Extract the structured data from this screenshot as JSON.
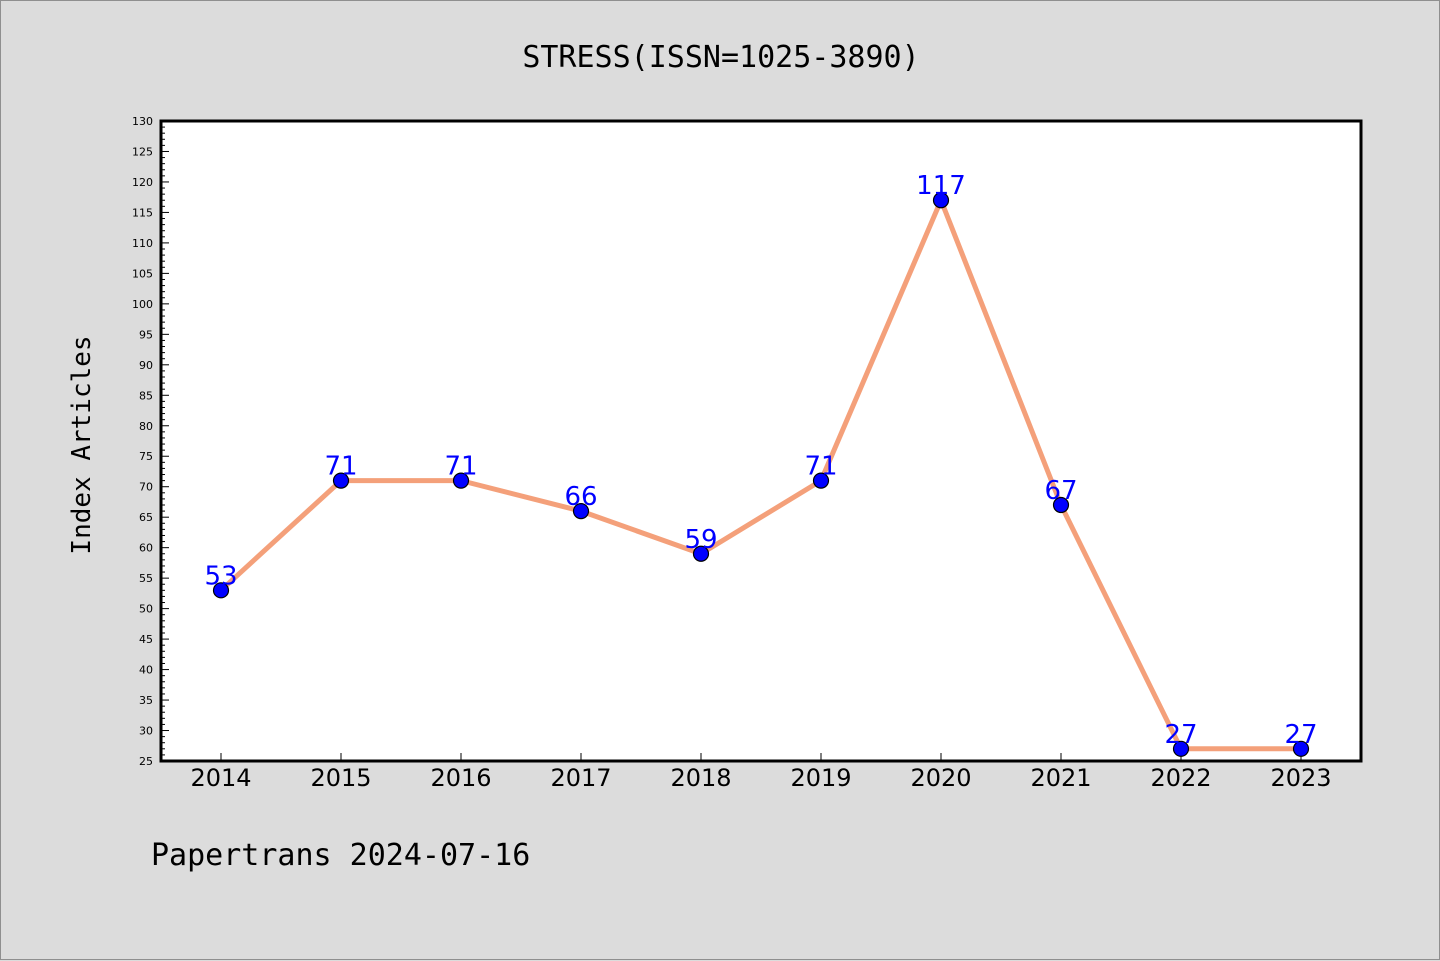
{
  "chart_data": {
    "type": "line",
    "title": "STRESS(ISSN=1025-3890)",
    "xlabel": "",
    "ylabel": "Index Articles",
    "categories": [
      "2014",
      "2015",
      "2016",
      "2017",
      "2018",
      "2019",
      "2020",
      "2021",
      "2022",
      "2023"
    ],
    "series": [
      {
        "values": [
          53,
          71,
          71,
          66,
          59,
          71,
          117,
          67,
          27,
          27
        ]
      }
    ],
    "ylim": [
      25,
      130
    ],
    "ytick_step": 5,
    "grid": false,
    "legend": "none",
    "line_color": "#f4a07a",
    "marker_color": "#0000ff",
    "data_label_color": "#0000ff"
  },
  "footer": {
    "text": "Papertrans 2024-07-16"
  }
}
